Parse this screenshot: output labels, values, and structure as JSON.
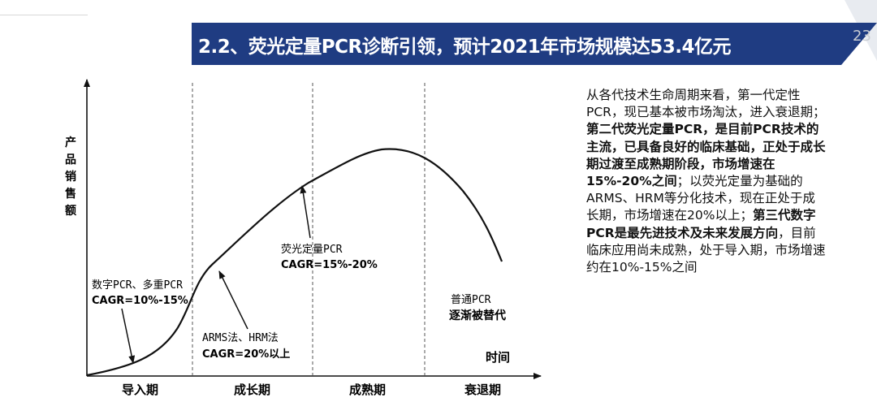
{
  "slide": {
    "title": "2.2、荧光定量PCR诊断引领，预计2021年市场规模达53.4亿元",
    "page_number": "23",
    "brand_color": "#1f3c82"
  },
  "diagram": {
    "y_axis_label": [
      "产",
      "品",
      "销",
      "售",
      "额"
    ],
    "x_axis_label": "时间",
    "phases": [
      "导入期",
      "成长期",
      "成熟期",
      "衰退期"
    ],
    "annotations": [
      {
        "line1": "数字PCR、多重PCR",
        "line2": "CAGR=10%-15%"
      },
      {
        "line1": "ARMS法、HRM法",
        "line2": "CAGR=20%以上"
      },
      {
        "line1": "荧光定量PCR",
        "line2": "CAGR=15%-20%"
      },
      {
        "line1": "普通PCR",
        "line2": "逐渐被替代"
      }
    ]
  },
  "description": [
    {
      "text": "从各代技术生命周期来看，第一代定性PCR，现已基本被市场淘汰，进入衰退期；",
      "bold": false
    },
    {
      "text": "第二代荧光定量PCR，是目前PCR技术的主流，已具备良好的临床基础，正处于成长期过渡至成熟期阶段，市场增速在15%-20%之间",
      "bold": true
    },
    {
      "text": "；以荧光定量为基础的ARMS、HRM等分化技术，现在正处于成长期，市场增速在20%以上；",
      "bold": false
    },
    {
      "text": "第三代数字PCR是最先进技术及未来发展方向",
      "bold": true
    },
    {
      "text": "，目前临床应用尚未成熟，处于导入期，市场增速约在10%-15%之间",
      "bold": false
    }
  ]
}
